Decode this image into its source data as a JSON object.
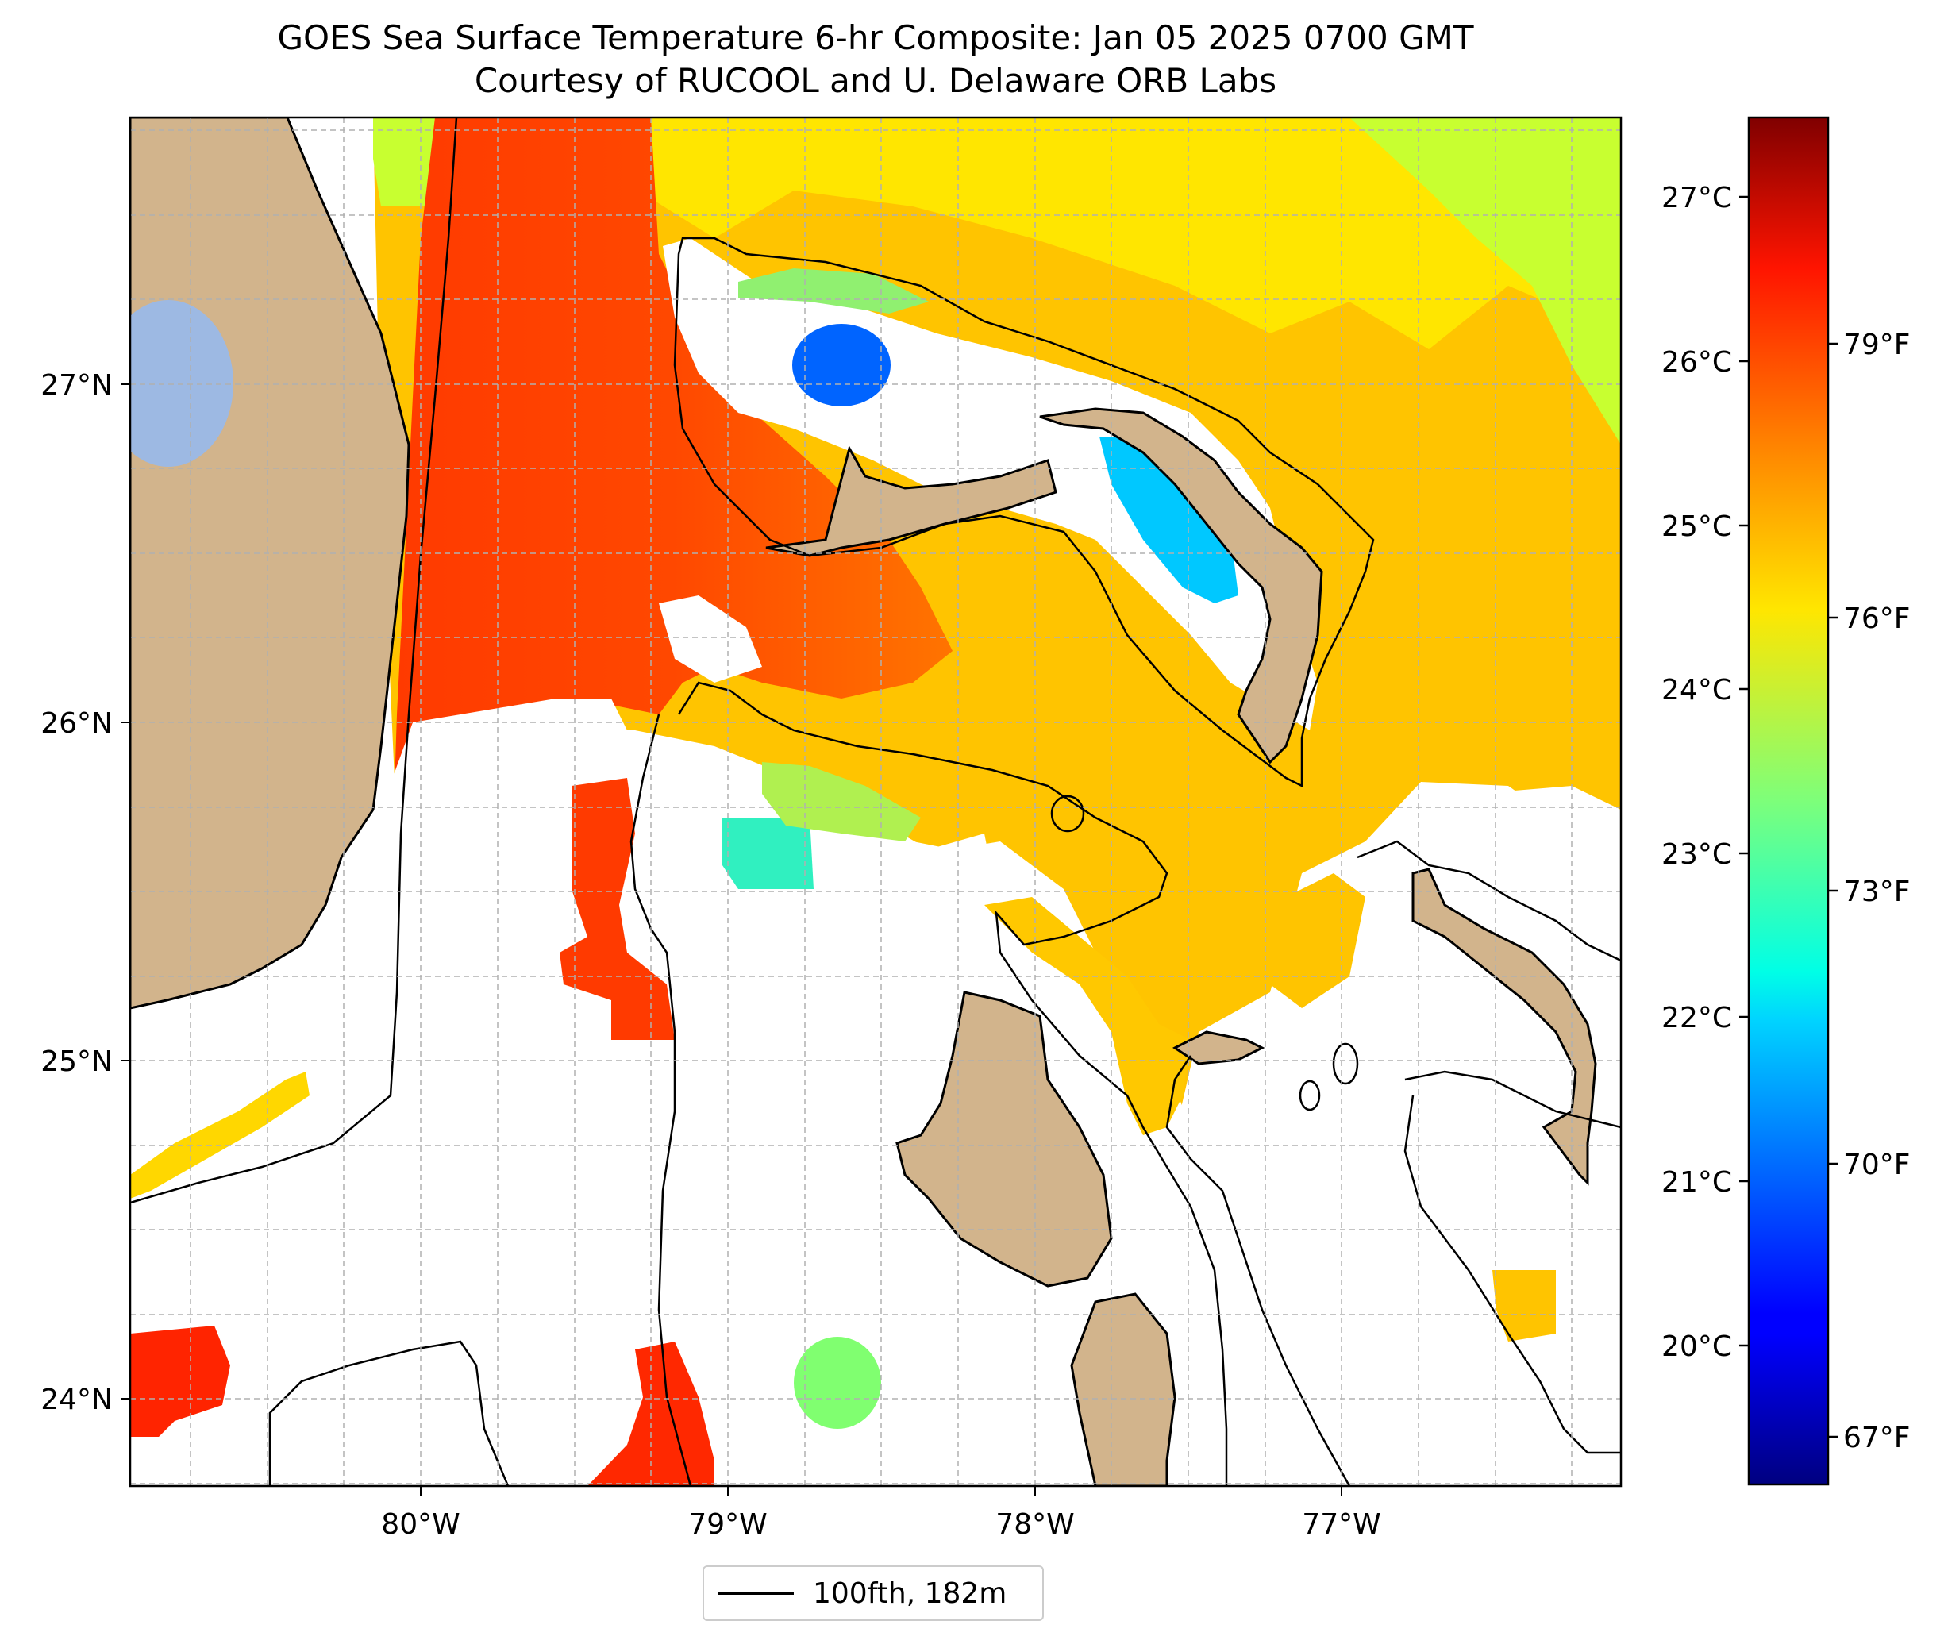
{
  "title": "GOES Sea Surface Temperature 6-hr Composite: Jan 05 2025 0700 GMT",
  "subtitle": "Courtesy of RUCOOL and U. Delaware ORB Labs",
  "map": {
    "lon_labels": [
      "80°W",
      "79°W",
      "78°W",
      "77°W"
    ],
    "lat_labels": [
      "27°N",
      "26°N",
      "25°N",
      "24°N"
    ],
    "land_color": "#d2b48c",
    "lake_color": "#9db9e3"
  },
  "colorbar": {
    "colormap": "jet",
    "celsius_ticks": [
      "27°C",
      "26°C",
      "25°C",
      "24°C",
      "23°C",
      "22°C",
      "21°C",
      "20°C"
    ],
    "fahrenheit_ticks": [
      "79°F",
      "76°F",
      "73°F",
      "70°F",
      "67°F"
    ]
  },
  "legend": {
    "label": "100fth, 182m"
  }
}
